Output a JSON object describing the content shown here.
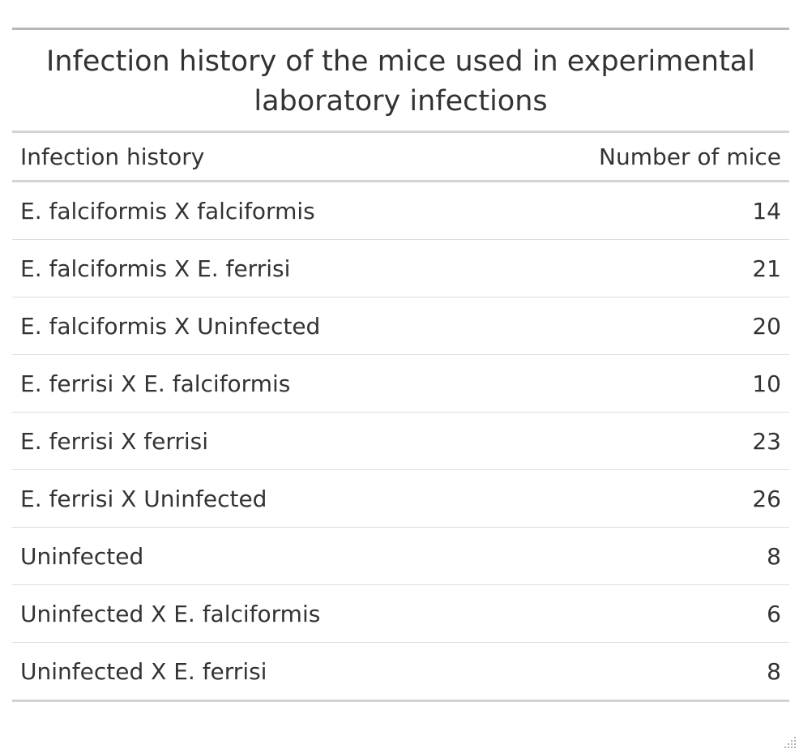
{
  "table": {
    "title": "Infection history of the mice used in experimental laboratory infections",
    "columns": [
      "Infection history",
      "Number of mice"
    ],
    "rows": [
      {
        "history": "E. falciformis X falciformis",
        "count": "14"
      },
      {
        "history": "E. falciformis X E. ferrisi",
        "count": "21"
      },
      {
        "history": "E. falciformis X Uninfected",
        "count": "20"
      },
      {
        "history": "E. ferrisi X E. falciformis",
        "count": "10"
      },
      {
        "history": "E. ferrisi X ferrisi",
        "count": "23"
      },
      {
        "history": "E. ferrisi X Uninfected",
        "count": "26"
      },
      {
        "history": "Uninfected",
        "count": "8"
      },
      {
        "history": "Uninfected X E. falciformis",
        "count": "6"
      },
      {
        "history": "Uninfected X E. ferrisi",
        "count": "8"
      }
    ]
  },
  "icons": {
    "resize_handle": "resize-grip-icon"
  }
}
